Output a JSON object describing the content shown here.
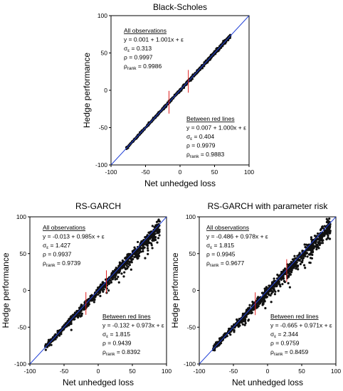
{
  "chart_data": [
    {
      "type": "scatter",
      "title": "Black-Scholes",
      "xlabel": "Net unhedged loss",
      "ylabel": "Hedge performance",
      "xlim": [
        -100,
        100
      ],
      "ylim": [
        -100,
        100
      ],
      "xticks": [
        "-100",
        "-50",
        "0",
        "50",
        "100"
      ],
      "yticks": [
        "-100",
        "-50",
        "0",
        "50",
        "100"
      ],
      "reference_line": "y = x",
      "red_lines_x": [
        -16,
        12
      ],
      "point_cloud": {
        "x_min": -78,
        "x_max": 73,
        "intercept": 0.001,
        "slope": 1.001,
        "spread_min": 1.2,
        "spread_max": 2.6
      },
      "annotations": {
        "all": {
          "heading": "All observations",
          "eq": "y = 0.001 + 1.001x + ε",
          "sigma": [
            "σ",
            "ε",
            " = 0.313"
          ],
          "rho": "ρ = 0.9997",
          "rank": [
            "ρ",
            "rank",
            " = 0.9986"
          ]
        },
        "between": {
          "heading": "Between red lines",
          "eq": "y = 0.007 + 1.000x + ε",
          "sigma": [
            "σ",
            "ε",
            " = 0.404"
          ],
          "rho": "ρ = 0.9979",
          "rank": [
            "ρ",
            "rank",
            " = 0.9883"
          ]
        }
      }
    },
    {
      "type": "scatter",
      "title": "RS-GARCH",
      "xlabel": "Net unhedged loss",
      "ylabel": "Hedge performance",
      "xlim": [
        -100,
        100
      ],
      "ylim": [
        -100,
        100
      ],
      "xticks": [
        "-100",
        "-50",
        "0",
        "50",
        "100"
      ],
      "yticks": [
        "-100",
        "-50",
        "0",
        "50",
        "100"
      ],
      "reference_line": "y = x",
      "red_lines_x": [
        -18,
        12
      ],
      "point_cloud": {
        "x_min": -78,
        "x_max": 90,
        "intercept": -0.013,
        "slope": 0.985,
        "spread_min": 2.5,
        "spread_max": 9
      },
      "annotations": {
        "all": {
          "heading": "All observations",
          "eq": "y = -0.013 + 0.985x + ε",
          "sigma": [
            "σ",
            "ε",
            " = 1.427"
          ],
          "rho": "ρ = 0.9937",
          "rank": [
            "ρ",
            "rank",
            " = 0.9739"
          ]
        },
        "between": {
          "heading": "Between red lines",
          "eq": "y = -0.132 + 0.973x + ε",
          "sigma": [
            "σ",
            "ε",
            " = 1.815"
          ],
          "rho": "ρ = 0.9439",
          "rank": [
            "ρ",
            "rank",
            " = 0.8392"
          ]
        }
      }
    },
    {
      "type": "scatter",
      "title": "RS-GARCH with parameter risk",
      "xlabel": "Net unhedged loss",
      "ylabel": "Hedge performance",
      "xlim": [
        -100,
        100
      ],
      "ylim": [
        -100,
        100
      ],
      "xticks": [
        "-100",
        "-50",
        "0",
        "50",
        "100"
      ],
      "yticks": [
        "-100",
        "-50",
        "0",
        "50",
        "100"
      ],
      "reference_line": "y = x",
      "red_lines_x": [
        -18,
        28
      ],
      "point_cloud": {
        "x_min": -80,
        "x_max": 92,
        "intercept": -0.486,
        "slope": 0.978,
        "spread_min": 3,
        "spread_max": 11
      },
      "annotations": {
        "all": {
          "heading": "All observations",
          "eq": "y = -0.486 + 0.978x + ε",
          "sigma": [
            "σ",
            "ε",
            " = 1.815"
          ],
          "rho": "ρ = 0.9945",
          "rank": [
            "ρ",
            "rank",
            " = 0.9677"
          ]
        },
        "between": {
          "heading": "Between red lines",
          "eq": "y = -0.665 + 0.971x + ε",
          "sigma": [
            "σ",
            "ε",
            " = 2.344"
          ],
          "rho": "ρ = 0.9759",
          "rank": [
            "ρ",
            "rank",
            " = 0.8459"
          ]
        }
      }
    }
  ]
}
